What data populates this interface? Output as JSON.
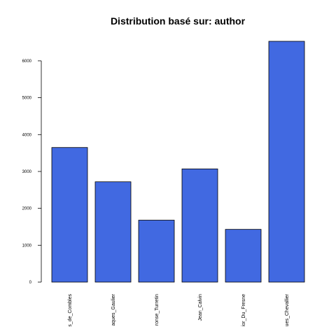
{
  "chart_data": {
    "type": "bar",
    "title": "Distribution basé sur: author",
    "xlabel": "",
    "ylabel": "",
    "categories": [
      "s_de_Combles",
      "aques_Gaulier",
      "ronse_Turretin",
      "Jean_Calvin",
      "ior_Du_Fresne",
      "ues_Chevallier"
    ],
    "values": [
      3650,
      2720,
      1680,
      3070,
      1430,
      6530
    ],
    "ylim": [
      0,
      6530
    ],
    "yticks": [
      0,
      1000,
      2000,
      3000,
      4000,
      5000,
      6000
    ],
    "ytick_labels": [
      "0",
      "1000",
      "2000",
      "3000",
      "4000",
      "5000",
      "6000"
    ],
    "bar_color": "#4169E1",
    "bar_edge_color": "#000000",
    "grid": false
  }
}
